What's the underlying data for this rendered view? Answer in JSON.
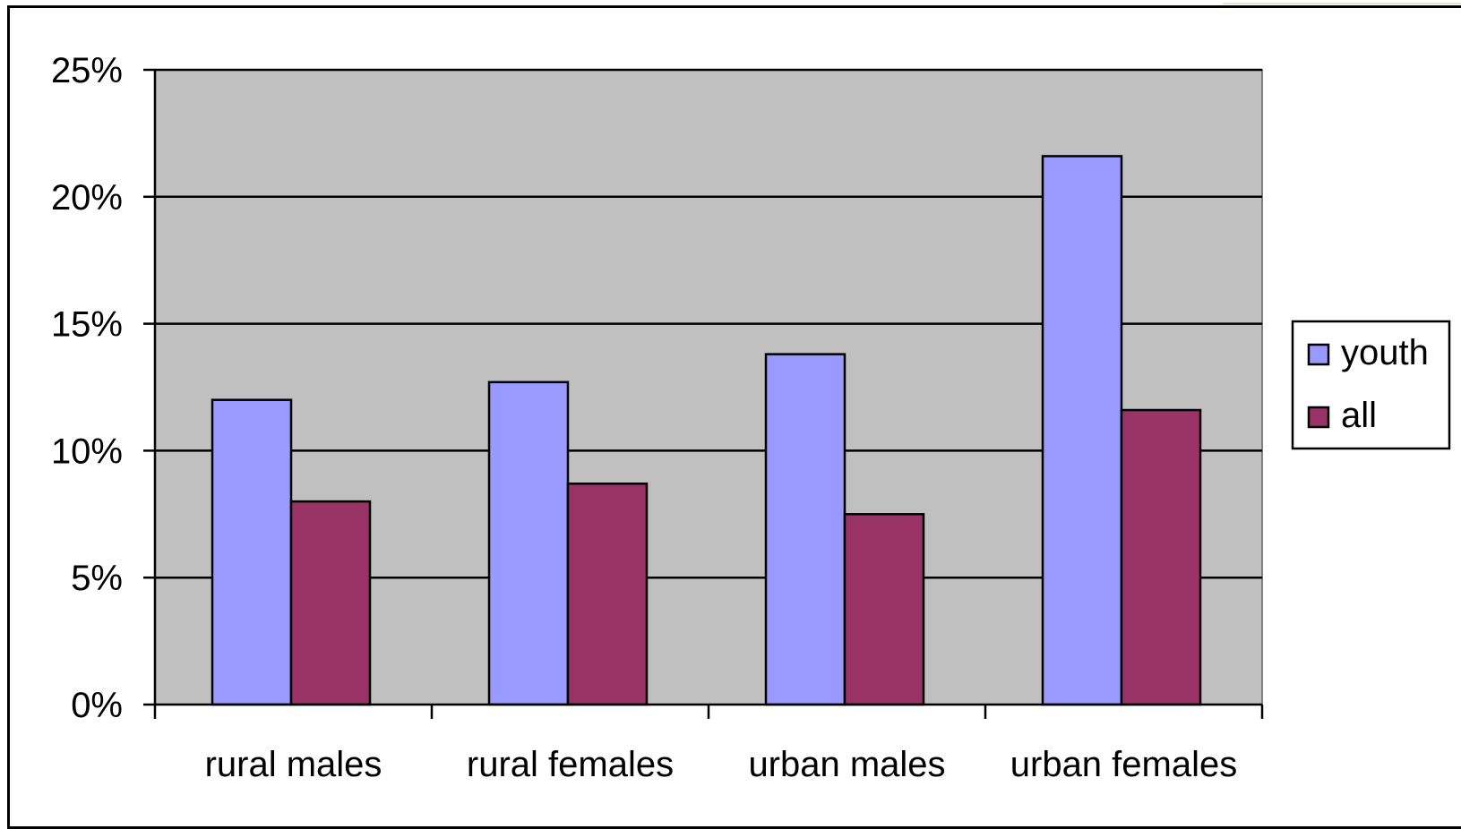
{
  "chart_data": {
    "type": "bar",
    "title": "",
    "xlabel": "",
    "ylabel": "",
    "ylim": [
      0,
      25
    ],
    "yticks": [
      "0%",
      "5%",
      "10%",
      "15%",
      "20%",
      "25%"
    ],
    "categories": [
      "rural males",
      "rural females",
      "urban males",
      "urban females"
    ],
    "series": [
      {
        "name": "youth",
        "values": [
          12.0,
          12.7,
          13.8,
          21.6
        ]
      },
      {
        "name": "all",
        "values": [
          8.0,
          8.7,
          7.5,
          11.6
        ]
      }
    ],
    "grid": true,
    "legend_position": "right"
  },
  "colors": {
    "youth": "#9999ff",
    "all": "#993366",
    "plot_background": "#c0c0c0",
    "gridline": "#000000"
  }
}
